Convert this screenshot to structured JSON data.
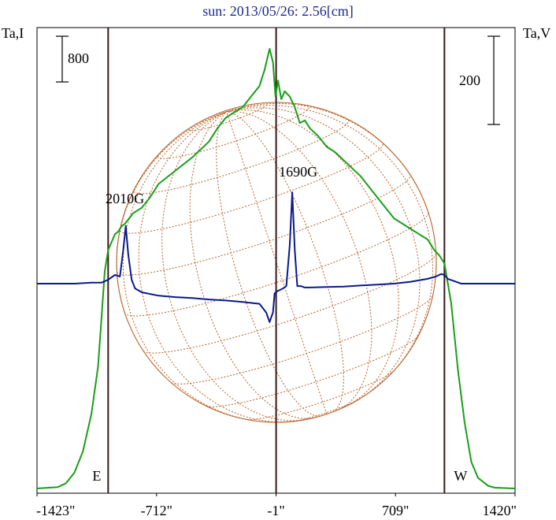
{
  "chart_data": {
    "type": "line",
    "title": "sun: 2013/05/26: 2.56[cm]",
    "left_axis_label": "Ta,I",
    "right_axis_label": "Ta,V",
    "scale_bar_I": "800",
    "scale_bar_V": "200",
    "x_ticks": [
      "-1423\"",
      "-712\"",
      "-1\"",
      "709\"",
      "1420\""
    ],
    "x_tick_values": [
      -1423,
      -712,
      -1,
      709,
      1420
    ],
    "xlim": [
      -1423,
      1420
    ],
    "limb_markers": {
      "east_label": "E",
      "west_label": "W",
      "east_x": -1000,
      "west_x": 1000
    },
    "annotations": [
      {
        "text": "2010G",
        "x": -900
      },
      {
        "text": "1690G",
        "x": 130
      }
    ],
    "colors": {
      "stokes_I": "#1a9e1a",
      "stokes_V": "#0a1a8a",
      "disk_grid": "#b8622a",
      "limb_lines": "#3a1818",
      "title": "#1c2a8c"
    },
    "series": [
      {
        "name": "I",
        "x": [
          -1423,
          -1300,
          -1250,
          -1200,
          -1150,
          -1100,
          -1060,
          -1040,
          -1020,
          -1000,
          -980,
          -960,
          -940,
          -920,
          -900,
          -850,
          -800,
          -750,
          -700,
          -600,
          -500,
          -400,
          -350,
          -300,
          -250,
          -200,
          -150,
          -100,
          -70,
          -40,
          -20,
          -5,
          10,
          30,
          50,
          80,
          110,
          140,
          170,
          200,
          250,
          300,
          350,
          400,
          450,
          500,
          550,
          600,
          650,
          700,
          750,
          800,
          850,
          900,
          940,
          970,
          1000,
          1040,
          1080,
          1120,
          1160,
          1200,
          1260,
          1300,
          1420
        ],
        "y": [
          0,
          5,
          20,
          60,
          140,
          280,
          460,
          640,
          820,
          900,
          930,
          960,
          970,
          990,
          1000,
          1040,
          1060,
          1100,
          1150,
          1200,
          1250,
          1310,
          1360,
          1400,
          1420,
          1440,
          1480,
          1520,
          1580,
          1660,
          1610,
          1480,
          1540,
          1470,
          1500,
          1480,
          1440,
          1380,
          1390,
          1360,
          1330,
          1290,
          1270,
          1240,
          1210,
          1180,
          1140,
          1100,
          1060,
          1020,
          1000,
          980,
          960,
          940,
          900,
          880,
          850,
          700,
          450,
          250,
          100,
          40,
          10,
          3,
          0
        ]
      },
      {
        "name": "V",
        "x": [
          -1423,
          -1200,
          -1100,
          -1040,
          -1000,
          -960,
          -930,
          -910,
          -895,
          -880,
          -860,
          -840,
          -800,
          -700,
          -600,
          -500,
          -400,
          -300,
          -200,
          -100,
          -60,
          -40,
          -20,
          -10,
          10,
          40,
          60,
          80,
          95,
          110,
          125,
          145,
          170,
          200,
          300,
          400,
          500,
          600,
          700,
          800,
          900,
          950,
          980,
          1000,
          1020,
          1060,
          1100,
          1200,
          1300,
          1420
        ],
        "y": [
          0,
          0,
          2,
          2,
          8,
          18,
          15,
          70,
          120,
          60,
          8,
          -10,
          -18,
          -25,
          -28,
          -30,
          -33,
          -35,
          -38,
          -42,
          -60,
          -80,
          -60,
          -20,
          -15,
          -10,
          -5,
          80,
          190,
          70,
          -5,
          -5,
          -8,
          -8,
          -7,
          -6,
          -4,
          -2,
          0,
          4,
          10,
          15,
          20,
          18,
          10,
          5,
          0,
          0,
          0,
          0
        ]
      }
    ]
  }
}
